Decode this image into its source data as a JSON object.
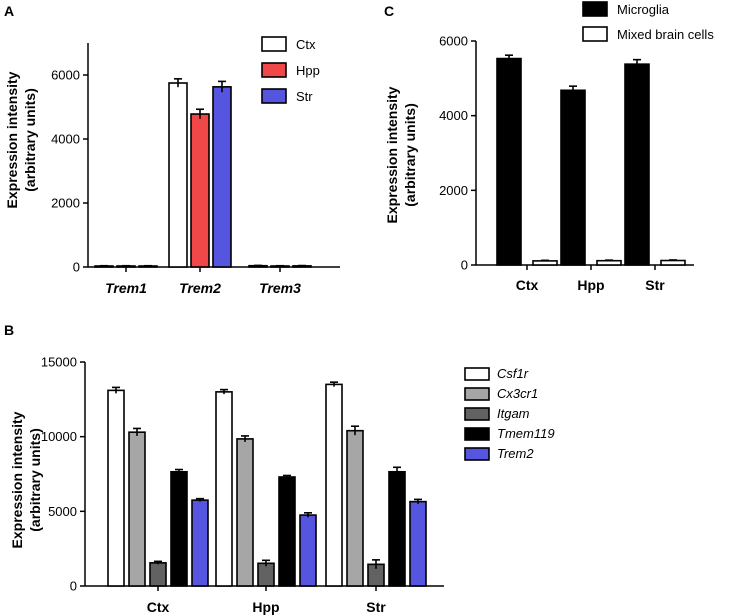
{
  "panels": [
    {
      "letter": "A",
      "ylabel_line1": "Expression intensity",
      "ylabel_line2": "(arbitrary units)"
    },
    {
      "letter": "B",
      "ylabel_line1": "Expression intensity",
      "ylabel_line2": "(arbitrary units)"
    },
    {
      "letter": "C",
      "ylabel_line1": "Expression intensity",
      "ylabel_line2": "(arbitrary units)"
    }
  ],
  "chart_data": [
    {
      "type": "bar",
      "panel": "A",
      "title": "",
      "ylabel": "Expression intensity (arbitrary units)",
      "ylim": [
        0,
        7000
      ],
      "yticks": [
        0,
        2000,
        4000,
        6000
      ],
      "categories": [
        "Trem1",
        "Trem2",
        "Trem3"
      ],
      "category_style": "italic",
      "legend_position": "top-right",
      "series": [
        {
          "name": "Ctx",
          "color": "#ffffff",
          "values": [
            30,
            5750,
            40
          ],
          "errors": [
            10,
            130,
            10
          ]
        },
        {
          "name": "Hpp",
          "color": "#f04848",
          "values": [
            30,
            4780,
            30
          ],
          "errors": [
            10,
            150,
            10
          ]
        },
        {
          "name": "Str",
          "color": "#5555e0",
          "values": [
            30,
            5630,
            35
          ],
          "errors": [
            10,
            170,
            10
          ]
        }
      ]
    },
    {
      "type": "bar",
      "panel": "B",
      "title": "",
      "ylabel": "Expression intensity (arbitrary units)",
      "ylim": [
        0,
        15000
      ],
      "yticks": [
        0,
        5000,
        10000,
        15000
      ],
      "categories": [
        "Ctx",
        "Hpp",
        "Str"
      ],
      "category_style": "normal",
      "legend_position": "right",
      "legend_style": "italic",
      "series": [
        {
          "name": "Csf1r",
          "color": "#ffffff",
          "values": [
            13100,
            13000,
            13500
          ],
          "errors": [
            200,
            150,
            150
          ]
        },
        {
          "name": "Cx3cr1",
          "color": "#a6a6a6",
          "values": [
            10300,
            9850,
            10400
          ],
          "errors": [
            250,
            200,
            300
          ]
        },
        {
          "name": "Itgam",
          "color": "#626262",
          "values": [
            1550,
            1520,
            1450
          ],
          "errors": [
            100,
            200,
            300
          ]
        },
        {
          "name": "Tmem119",
          "color": "#000000",
          "values": [
            7650,
            7300,
            7650
          ],
          "errors": [
            150,
            100,
            300
          ]
        },
        {
          "name": "Trem2",
          "color": "#5555e0",
          "values": [
            5750,
            4750,
            5650
          ],
          "errors": [
            100,
            150,
            150
          ]
        }
      ]
    },
    {
      "type": "bar",
      "panel": "C",
      "title": "",
      "ylabel": "Expression intensity (arbitrary units)",
      "ylim": [
        0,
        6000
      ],
      "yticks": [
        0,
        2000,
        4000,
        6000
      ],
      "categories": [
        "Ctx",
        "Hpp",
        "Str"
      ],
      "category_style": "normal",
      "legend_position": "top",
      "series": [
        {
          "name": "Microglia",
          "color": "#000000",
          "values": [
            5530,
            4680,
            5380
          ],
          "errors": [
            90,
            110,
            120
          ]
        },
        {
          "name": "Mixed brain cells",
          "color": "#ffffff",
          "values": [
            110,
            115,
            120
          ],
          "errors": [
            15,
            15,
            15
          ]
        }
      ]
    }
  ]
}
